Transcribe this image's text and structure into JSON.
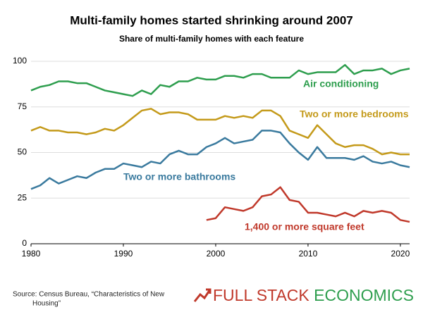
{
  "chart_data": {
    "type": "line",
    "title": "Multi-family homes started shrinking around 2007",
    "subtitle": "Share of multi-family homes with each feature",
    "x": [
      1980,
      1981,
      1982,
      1983,
      1984,
      1985,
      1986,
      1987,
      1988,
      1989,
      1990,
      1991,
      1992,
      1993,
      1994,
      1995,
      1996,
      1997,
      1998,
      1999,
      2000,
      2001,
      2002,
      2003,
      2004,
      2005,
      2006,
      2007,
      2008,
      2009,
      2010,
      2011,
      2012,
      2013,
      2014,
      2015,
      2016,
      2017,
      2018,
      2019,
      2020,
      2021
    ],
    "series": [
      {
        "name": "Air conditioning",
        "color": "#2e9e4e",
        "values": [
          84,
          86,
          87,
          89,
          89,
          88,
          88,
          86,
          84,
          83,
          82,
          81,
          84,
          82,
          87,
          86,
          89,
          89,
          91,
          90,
          90,
          92,
          92,
          91,
          93,
          93,
          91,
          91,
          91,
          95,
          93,
          94,
          94,
          94,
          98,
          93,
          95,
          95,
          96,
          93,
          95,
          96
        ]
      },
      {
        "name": "Two or more bedrooms",
        "color": "#c49a1a",
        "values": [
          62,
          64,
          62,
          62,
          61,
          61,
          60,
          61,
          63,
          62,
          65,
          69,
          73,
          74,
          71,
          72,
          72,
          71,
          68,
          68,
          68,
          70,
          69,
          70,
          69,
          73,
          73,
          70,
          62,
          60,
          58,
          65,
          60,
          55,
          53,
          54,
          54,
          52,
          49,
          50,
          49,
          49
        ]
      },
      {
        "name": "Two or more bathrooms",
        "color": "#3a7a9e",
        "values": [
          30,
          32,
          36,
          33,
          35,
          37,
          36,
          39,
          41,
          41,
          44,
          43,
          42,
          45,
          44,
          49,
          51,
          49,
          49,
          53,
          55,
          58,
          55,
          56,
          57,
          62,
          62,
          61,
          55,
          50,
          46,
          53,
          47,
          47,
          47,
          46,
          48,
          45,
          44,
          45,
          43,
          42
        ]
      },
      {
        "name": "1,400 or more square feet",
        "color": "#c0392b",
        "values": [
          null,
          null,
          null,
          null,
          null,
          null,
          null,
          null,
          null,
          null,
          null,
          null,
          null,
          null,
          null,
          null,
          null,
          null,
          null,
          13,
          14,
          20,
          19,
          18,
          20,
          26,
          27,
          31,
          24,
          23,
          17,
          17,
          16,
          15,
          17,
          15,
          18,
          17,
          18,
          17,
          13,
          12
        ]
      }
    ],
    "xlim": [
      1980,
      2021
    ],
    "xticks": [
      1980,
      1990,
      2000,
      2010,
      2020
    ],
    "ylim": [
      0,
      100
    ],
    "yticks": [
      0,
      25,
      50,
      75,
      100
    ],
    "grid": true,
    "source": [
      "Source: Census Bureau, “Characteristics of New",
      "Housing”"
    ]
  },
  "logo": {
    "part1": "FULL STACK",
    "part2": "ECONOMICS"
  }
}
